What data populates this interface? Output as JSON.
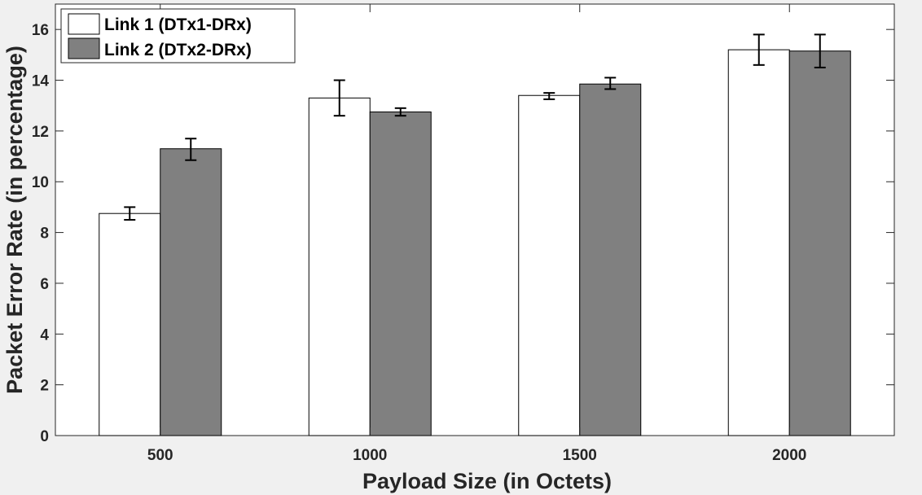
{
  "chart_data": {
    "type": "bar",
    "title": "",
    "xlabel": "Payload Size (in Octets)",
    "ylabel": "Packet Error Rate (in percentage)",
    "categories": [
      "500",
      "1000",
      "1500",
      "2000"
    ],
    "ylim": [
      0,
      17
    ],
    "yticks": [
      0,
      2,
      4,
      6,
      8,
      10,
      12,
      14,
      16
    ],
    "grid": false,
    "legend_position": "top-left",
    "series": [
      {
        "name": "Link 1 (DTx1-DRx)",
        "color": "#ffffff",
        "values": [
          8.75,
          13.3,
          13.4,
          15.2
        ],
        "err_low": [
          8.5,
          12.6,
          13.25,
          14.6
        ],
        "err_high": [
          9.0,
          14.0,
          13.5,
          15.8
        ]
      },
      {
        "name": "Link 2 (DTx2-DRx)",
        "color": "#808080",
        "values": [
          11.3,
          12.75,
          13.85,
          15.15
        ],
        "err_low": [
          10.85,
          12.6,
          13.65,
          14.5
        ],
        "err_high": [
          11.7,
          12.9,
          14.1,
          15.8
        ]
      }
    ],
    "background": "#f0f0f0",
    "plot_background": "#ffffff"
  }
}
